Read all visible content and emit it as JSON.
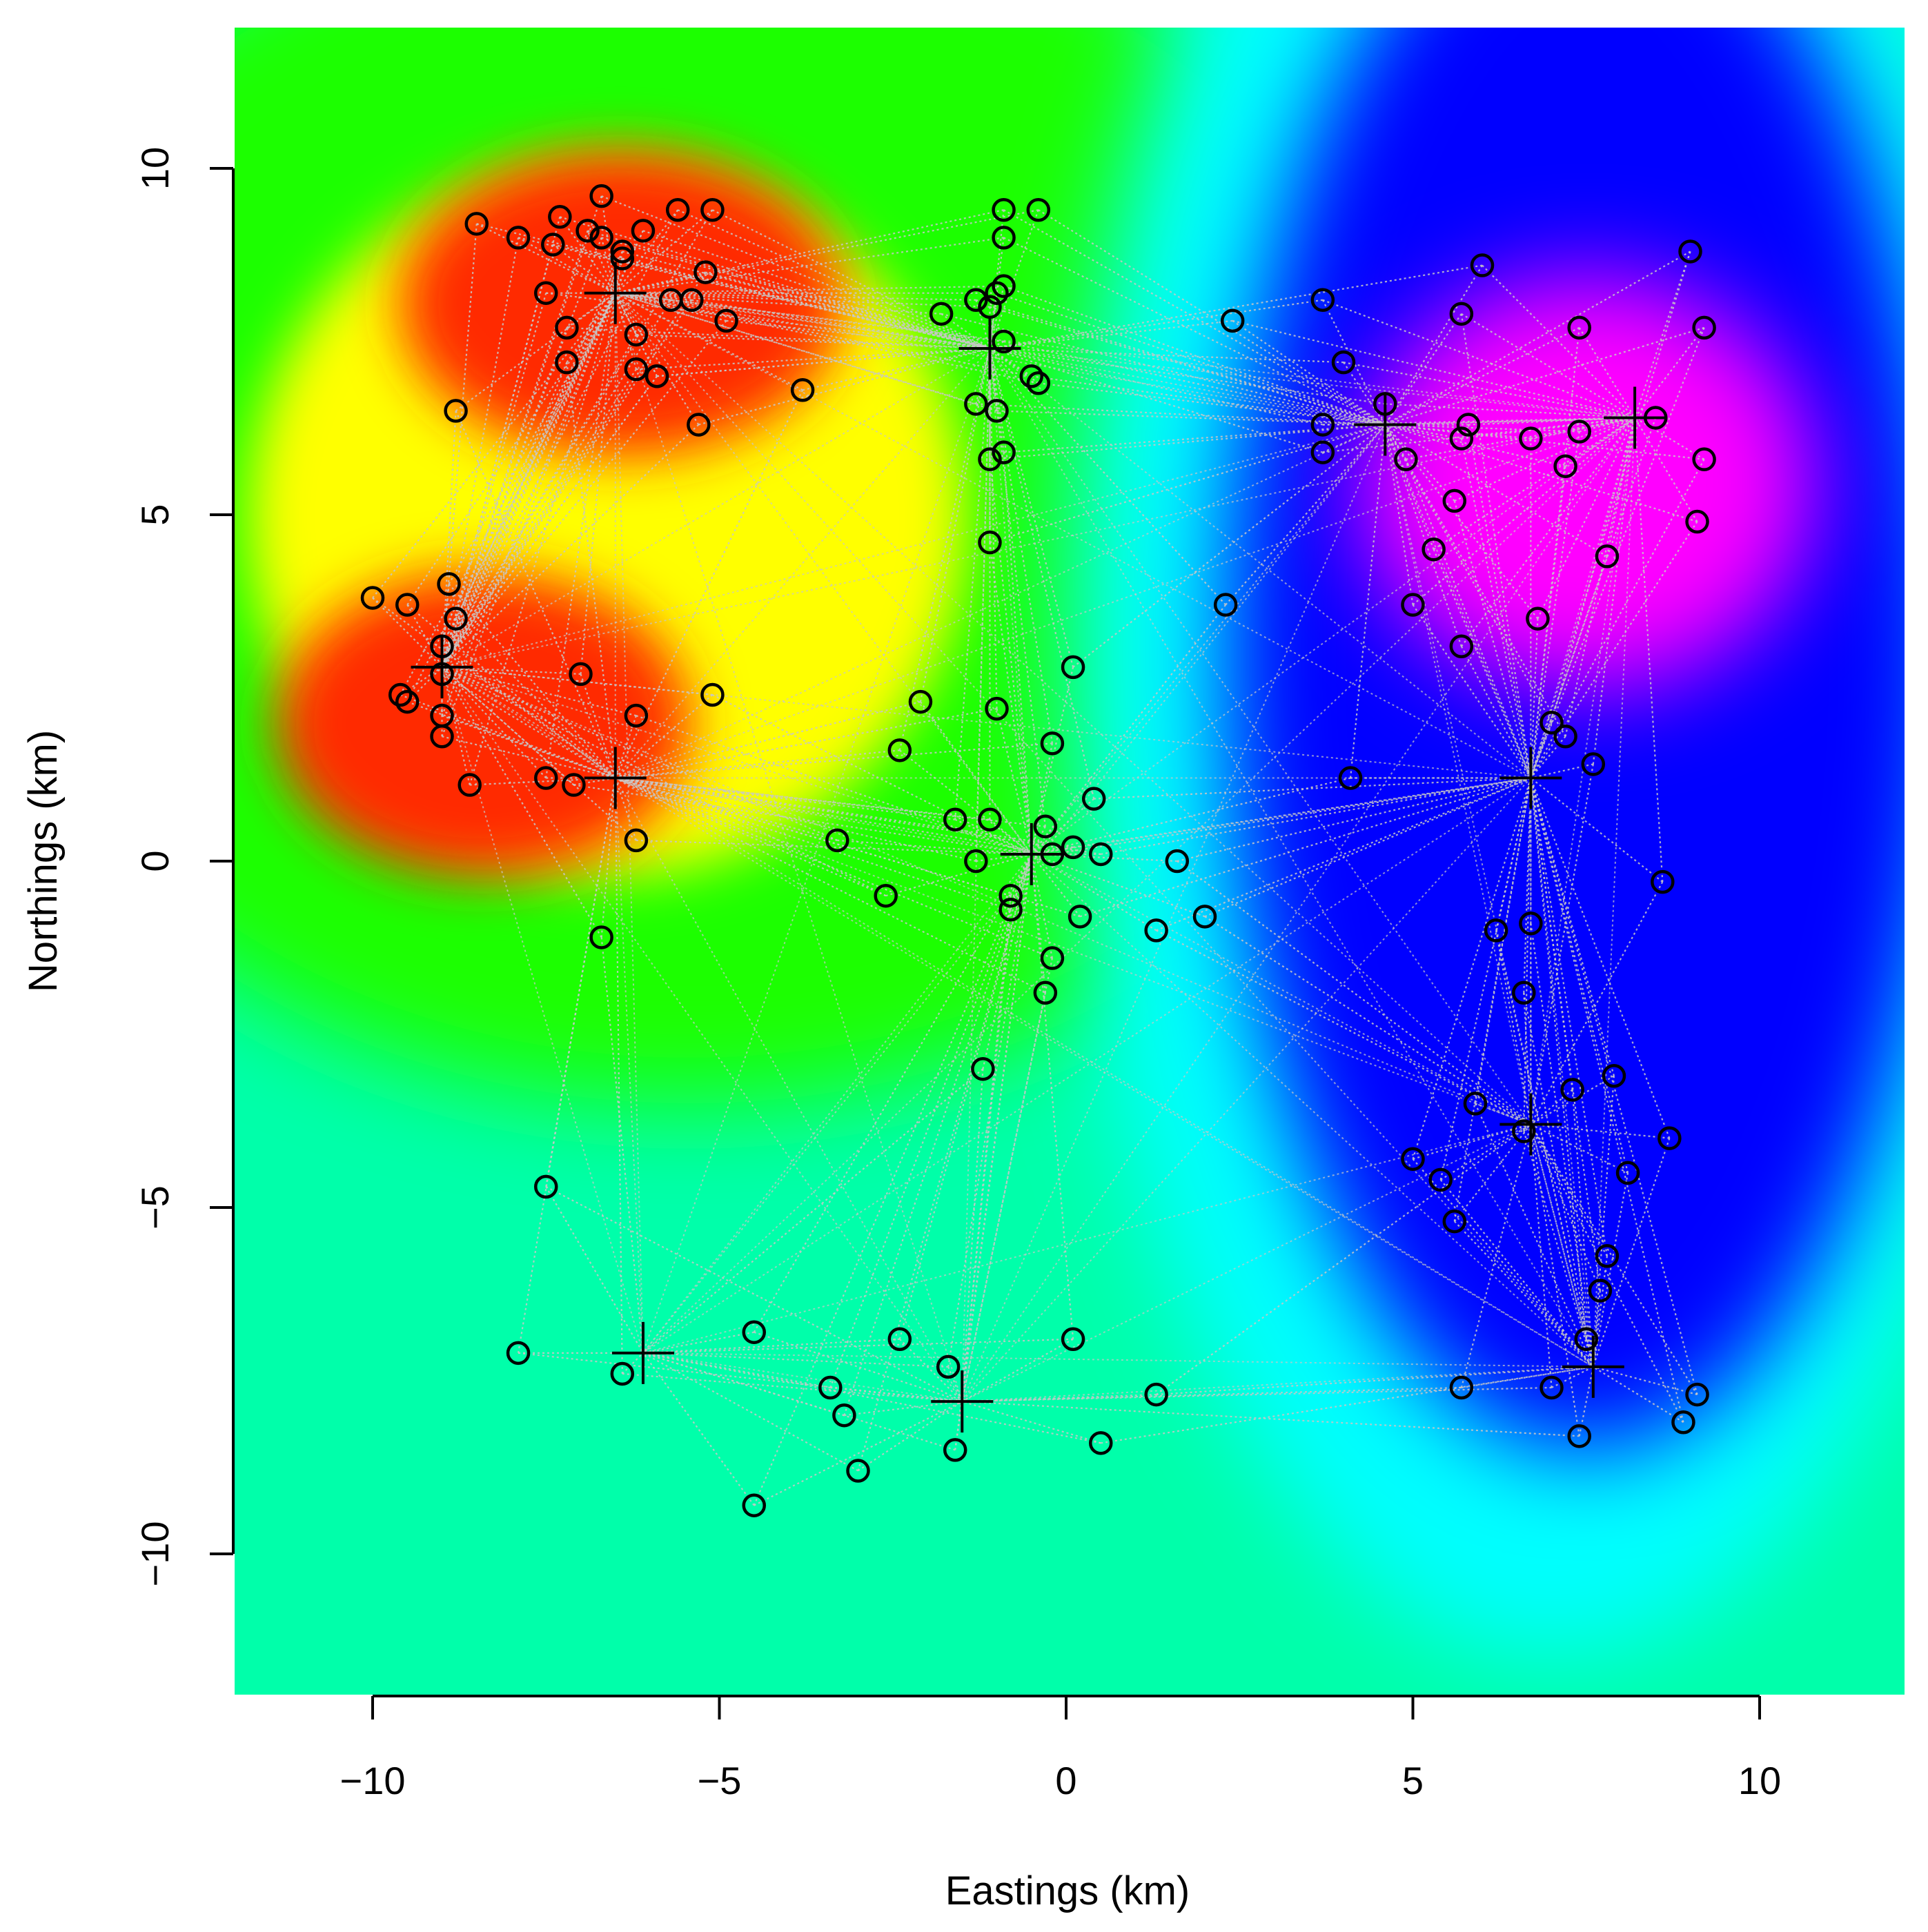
{
  "chart_data": {
    "type": "scatter",
    "title": "",
    "xlabel": "Eastings (km)",
    "ylabel": "Northings (km)",
    "xlim": [
      -12,
      12
    ],
    "ylim": [
      -12,
      12
    ],
    "xticks": [
      -10,
      -5,
      0,
      5,
      10
    ],
    "yticks": [
      -10,
      -5,
      0,
      5,
      10
    ],
    "xtick_labels": [
      "−10",
      "−5",
      "0",
      "5",
      "10"
    ],
    "ytick_labels": [
      "−10",
      "−5",
      "0",
      "5",
      "10"
    ],
    "background": "interpolated colour surface (green, yellow, red, cyan, blue, magenta)",
    "colors": {
      "green": "#1fff00",
      "yellow": "#ffff00",
      "red": "#ff2a00",
      "cyan": "#00ffff",
      "blue": "#0000ff",
      "magenta": "#ff00ff",
      "baseline": "#00ffaa",
      "links": "#c8c8c8"
    },
    "series": [
      {
        "marker": "circle",
        "points": [
          [
            -8.5,
            9.2
          ],
          [
            -7.9,
            9.0
          ],
          [
            -7.3,
            9.3
          ],
          [
            -6.9,
            9.1
          ],
          [
            -6.7,
            9.6
          ],
          [
            -6.7,
            9.0
          ],
          [
            -7.4,
            8.9
          ],
          [
            -6.4,
            8.8
          ],
          [
            -6.1,
            9.1
          ],
          [
            -5.6,
            9.4
          ],
          [
            -5.1,
            9.4
          ],
          [
            -6.4,
            8.7
          ],
          [
            -7.5,
            8.2
          ],
          [
            -5.2,
            8.5
          ],
          [
            -7.2,
            7.7
          ],
          [
            -5.7,
            8.1
          ],
          [
            -5.4,
            8.1
          ],
          [
            -6.2,
            7.6
          ],
          [
            -4.9,
            7.8
          ],
          [
            -7.2,
            7.2
          ],
          [
            -6.2,
            7.1
          ],
          [
            -5.9,
            7.0
          ],
          [
            -5.9,
            7.0
          ],
          [
            -3.8,
            6.8
          ],
          [
            -8.8,
            6.5
          ],
          [
            -5.3,
            6.3
          ],
          [
            -10.0,
            3.8
          ],
          [
            -9.5,
            3.7
          ],
          [
            -8.9,
            4.0
          ],
          [
            -8.8,
            3.5
          ],
          [
            -9.0,
            3.1
          ],
          [
            -9.0,
            2.7
          ],
          [
            -7.0,
            2.7
          ],
          [
            -9.6,
            2.4
          ],
          [
            -9.5,
            2.3
          ],
          [
            -5.1,
            2.4
          ],
          [
            -9.0,
            2.1
          ],
          [
            -6.2,
            2.1
          ],
          [
            -9.0,
            1.8
          ],
          [
            -7.5,
            1.2
          ],
          [
            -7.1,
            1.1
          ],
          [
            -8.6,
            1.1
          ],
          [
            -6.2,
            0.3
          ],
          [
            -6.7,
            -1.1
          ],
          [
            -0.9,
            9.4
          ],
          [
            -0.4,
            9.4
          ],
          [
            -0.9,
            9.0
          ],
          [
            -1.8,
            7.9
          ],
          [
            -1.3,
            8.1
          ],
          [
            -1.1,
            8.0
          ],
          [
            -1.0,
            8.2
          ],
          [
            -0.9,
            8.3
          ],
          [
            -0.9,
            7.5
          ],
          [
            -0.5,
            7.0
          ],
          [
            -0.4,
            6.9
          ],
          [
            -1.3,
            6.6
          ],
          [
            -1.0,
            6.5
          ],
          [
            -0.9,
            5.9
          ],
          [
            -1.1,
            5.8
          ],
          [
            -1.1,
            4.6
          ],
          [
            0.1,
            2.8
          ],
          [
            -2.1,
            2.3
          ],
          [
            -1.0,
            2.2
          ],
          [
            -2.4,
            1.6
          ],
          [
            -0.2,
            1.7
          ],
          [
            0.4,
            0.9
          ],
          [
            -3.3,
            0.3
          ],
          [
            -1.6,
            0.6
          ],
          [
            -1.1,
            0.6
          ],
          [
            -0.3,
            0.5
          ],
          [
            -1.3,
            0.0
          ],
          [
            -0.2,
            0.1
          ],
          [
            0.1,
            0.2
          ],
          [
            0.5,
            0.1
          ],
          [
            1.6,
            0.0
          ],
          [
            -2.6,
            -0.5
          ],
          [
            -0.8,
            -0.5
          ],
          [
            -0.8,
            -0.7
          ],
          [
            0.2,
            -0.8
          ],
          [
            1.3,
            -1.0
          ],
          [
            2.0,
            -0.8
          ],
          [
            -0.2,
            -1.4
          ],
          [
            -0.3,
            -1.9
          ],
          [
            -1.2,
            -3.0
          ],
          [
            3.7,
            8.1
          ],
          [
            2.4,
            7.8
          ],
          [
            6.0,
            8.6
          ],
          [
            5.7,
            7.9
          ],
          [
            9.0,
            8.8
          ],
          [
            9.2,
            7.7
          ],
          [
            7.4,
            7.7
          ],
          [
            4.0,
            7.2
          ],
          [
            4.6,
            6.6
          ],
          [
            3.7,
            6.3
          ],
          [
            5.8,
            6.3
          ],
          [
            5.7,
            6.1
          ],
          [
            6.7,
            6.1
          ],
          [
            7.4,
            6.2
          ],
          [
            8.5,
            6.4
          ],
          [
            3.7,
            5.9
          ],
          [
            4.9,
            5.8
          ],
          [
            7.2,
            5.7
          ],
          [
            9.2,
            5.8
          ],
          [
            5.6,
            5.2
          ],
          [
            5.3,
            4.5
          ],
          [
            9.1,
            4.9
          ],
          [
            7.8,
            4.4
          ],
          [
            2.3,
            3.7
          ],
          [
            5.0,
            3.7
          ],
          [
            6.8,
            3.5
          ],
          [
            5.7,
            3.1
          ],
          [
            7.0,
            2.0
          ],
          [
            7.2,
            1.8
          ],
          [
            7.6,
            1.4
          ],
          [
            4.1,
            1.2
          ],
          [
            8.6,
            -0.3
          ],
          [
            6.7,
            -0.9
          ],
          [
            6.2,
            -1.0
          ],
          [
            6.6,
            -1.9
          ],
          [
            7.3,
            -3.3
          ],
          [
            7.9,
            -3.1
          ],
          [
            5.9,
            -3.5
          ],
          [
            6.6,
            -3.9
          ],
          [
            8.7,
            -4.0
          ],
          [
            5.0,
            -4.3
          ],
          [
            5.4,
            -4.6
          ],
          [
            8.1,
            -4.5
          ],
          [
            5.6,
            -5.2
          ],
          [
            7.8,
            -5.7
          ],
          [
            7.7,
            -6.2
          ],
          [
            7.5,
            -6.9
          ],
          [
            5.7,
            -7.6
          ],
          [
            7.0,
            -7.6
          ],
          [
            9.1,
            -7.7
          ],
          [
            8.9,
            -8.1
          ],
          [
            7.4,
            -8.3
          ],
          [
            -7.5,
            -4.7
          ],
          [
            -7.9,
            -7.1
          ],
          [
            -6.4,
            -7.4
          ],
          [
            -4.5,
            -6.8
          ],
          [
            -2.4,
            -6.9
          ],
          [
            -1.7,
            -7.3
          ],
          [
            -3.4,
            -7.6
          ],
          [
            -3.2,
            -8.0
          ],
          [
            -3.0,
            -8.8
          ],
          [
            -1.6,
            -8.5
          ],
          [
            -4.5,
            -9.3
          ],
          [
            0.1,
            -6.9
          ],
          [
            1.3,
            -7.7
          ],
          [
            0.5,
            -8.4
          ]
        ]
      },
      {
        "marker": "plus",
        "points": [
          [
            -6.5,
            8.2
          ],
          [
            -9.0,
            2.8
          ],
          [
            -6.5,
            1.2
          ],
          [
            -1.1,
            7.4
          ],
          [
            -0.5,
            0.1
          ],
          [
            4.6,
            6.3
          ],
          [
            8.2,
            6.4
          ],
          [
            6.7,
            1.2
          ],
          [
            6.7,
            -3.8
          ],
          [
            -6.1,
            -7.1
          ],
          [
            -1.5,
            -7.8
          ],
          [
            7.6,
            -7.3
          ]
        ]
      }
    ],
    "surface_peaks": [
      {
        "x": -6.5,
        "y": 8.0,
        "color": "red"
      },
      {
        "x": -9.0,
        "y": 2.8,
        "color": "red"
      },
      {
        "x": 7.5,
        "y": 6.2,
        "color": "magenta"
      },
      {
        "x": 7.0,
        "y": -1.0,
        "color": "blue"
      }
    ]
  }
}
